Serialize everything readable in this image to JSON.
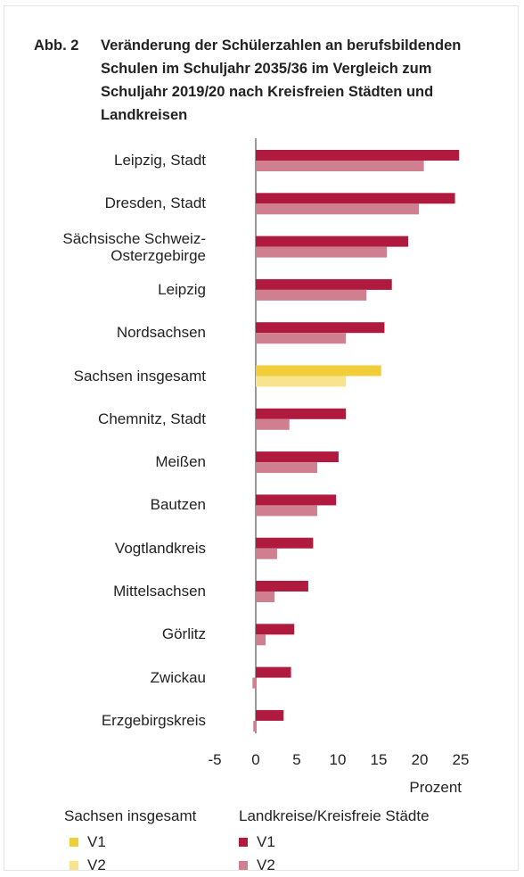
{
  "chart_data": {
    "type": "hbar",
    "figure_label": "Abb. 2",
    "title": "Veränderung der Schülerzahlen an berufsbildenden Schulen im Schuljahr 2035/36 im Vergleich zum Schuljahr 2019/20 nach Kreisfreien Städten und Landkreisen",
    "categories": [
      "Leipzig, Stadt",
      "Dresden, Stadt",
      "Sächsische Schweiz-\nOsterzgebirge",
      "Leipzig",
      "Nordsachsen",
      "Sachsen insgesamt",
      "Chemnitz, Stadt",
      "Meißen",
      "Bautzen",
      "Vogtlandkreis",
      "Mittelsachsen",
      "Görlitz",
      "Zwickau",
      "Erzgebirgskreis"
    ],
    "series": [
      {
        "name": "V1",
        "color": "#b01a3e",
        "values": [
          24.8,
          24.3,
          18.6,
          16.6,
          15.7,
          15.3,
          11.0,
          10.1,
          9.8,
          7.0,
          6.4,
          4.7,
          4.3,
          3.4
        ]
      },
      {
        "name": "V2",
        "color": "#cf7f90",
        "values": [
          20.5,
          19.9,
          16.0,
          13.5,
          11.0,
          11.0,
          4.1,
          7.5,
          7.5,
          2.6,
          2.3,
          1.2,
          -0.4,
          -0.3
        ]
      }
    ],
    "legend_groups": [
      {
        "title": "Sachsen insgesamt",
        "colors": [
          "#f2cd3a",
          "#f8e48c"
        ]
      },
      {
        "title": "Landkreise/Kreisfreie Städte",
        "colors": [
          "#b01a3e",
          "#cf7f90"
        ]
      }
    ],
    "xlabel": "Prozent",
    "xlim": [
      -5,
      25
    ],
    "xticks": [
      -5,
      0,
      5,
      10,
      15,
      20,
      25
    ]
  }
}
